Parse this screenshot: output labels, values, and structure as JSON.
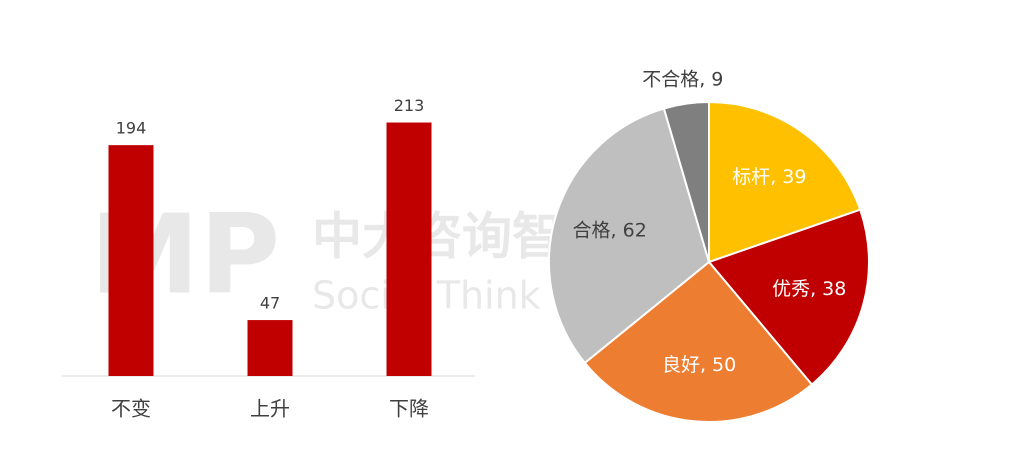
{
  "chart_data": [
    {
      "type": "bar",
      "categories": [
        "不变",
        "上升",
        "下降"
      ],
      "values": [
        194,
        47,
        213
      ],
      "color": "#c00000"
    },
    {
      "type": "pie",
      "values": [
        39,
        38,
        50,
        62,
        9
      ],
      "value_labels": [
        "标杆, 39",
        "优秀, 38",
        "良好, 50",
        "合格, 62",
        "不合格, 9"
      ],
      "colors": [
        "#ffc000",
        "#c00000",
        "#ed7d31",
        "#bfbfbf",
        "#7f7f7f"
      ]
    }
  ],
  "watermark": {
    "logo": "MP",
    "name": "中大咨询智库",
    "subtitle": "Social Think Tank"
  }
}
